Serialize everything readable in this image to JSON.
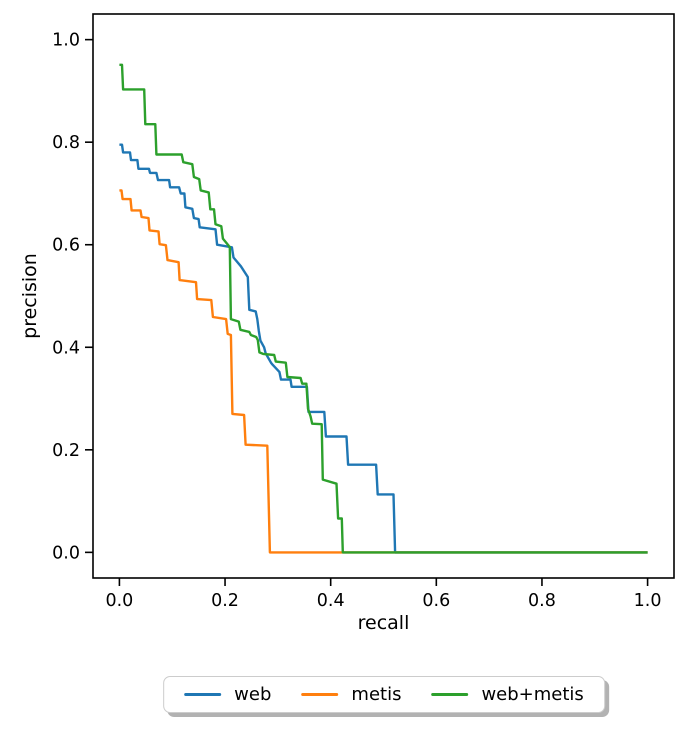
{
  "figure": {
    "background": "#ffffff",
    "axis_color": "#000000"
  },
  "chart_data": {
    "type": "line",
    "title": "",
    "xlabel": "recall",
    "ylabel": "precision",
    "xlim": [
      -0.05,
      1.05
    ],
    "ylim": [
      -0.05,
      1.05
    ],
    "grid": false,
    "legend_position": "below axes, centered, rounded box with shadow",
    "x_ticks": {
      "values": [
        0.0,
        0.2,
        0.4,
        0.6,
        0.8,
        1.0
      ],
      "labels": [
        "0.0",
        "0.2",
        "0.4",
        "0.6",
        "0.8",
        "1.0"
      ]
    },
    "y_ticks": {
      "values": [
        0.0,
        0.2,
        0.4,
        0.6,
        0.8,
        1.0
      ],
      "labels": [
        "0.0",
        "0.2",
        "0.4",
        "0.6",
        "0.8",
        "1.0"
      ]
    },
    "series": [
      {
        "name": "web",
        "color": "#1f77b4",
        "points": [
          [
            0.0,
            0.795
          ],
          [
            0.005,
            0.795
          ],
          [
            0.007,
            0.78
          ],
          [
            0.02,
            0.78
          ],
          [
            0.022,
            0.765
          ],
          [
            0.034,
            0.765
          ],
          [
            0.036,
            0.748
          ],
          [
            0.056,
            0.748
          ],
          [
            0.058,
            0.74
          ],
          [
            0.07,
            0.74
          ],
          [
            0.073,
            0.726
          ],
          [
            0.094,
            0.726
          ],
          [
            0.096,
            0.712
          ],
          [
            0.113,
            0.712
          ],
          [
            0.116,
            0.7
          ],
          [
            0.123,
            0.7
          ],
          [
            0.125,
            0.673
          ],
          [
            0.138,
            0.67
          ],
          [
            0.141,
            0.652
          ],
          [
            0.15,
            0.65
          ],
          [
            0.152,
            0.634
          ],
          [
            0.182,
            0.63
          ],
          [
            0.185,
            0.6
          ],
          [
            0.213,
            0.595
          ],
          [
            0.216,
            0.575
          ],
          [
            0.23,
            0.558
          ],
          [
            0.243,
            0.537
          ],
          [
            0.246,
            0.473
          ],
          [
            0.258,
            0.47
          ],
          [
            0.261,
            0.455
          ],
          [
            0.264,
            0.432
          ],
          [
            0.267,
            0.413
          ],
          [
            0.274,
            0.4
          ],
          [
            0.277,
            0.388
          ],
          [
            0.287,
            0.37
          ],
          [
            0.29,
            0.366
          ],
          [
            0.303,
            0.352
          ],
          [
            0.306,
            0.337
          ],
          [
            0.324,
            0.337
          ],
          [
            0.326,
            0.323
          ],
          [
            0.355,
            0.323
          ],
          [
            0.358,
            0.274
          ],
          [
            0.388,
            0.274
          ],
          [
            0.391,
            0.226
          ],
          [
            0.43,
            0.226
          ],
          [
            0.433,
            0.171
          ],
          [
            0.486,
            0.171
          ],
          [
            0.489,
            0.113
          ],
          [
            0.519,
            0.113
          ],
          [
            0.522,
            0.0
          ],
          [
            1.0,
            0.0
          ]
        ]
      },
      {
        "name": "metis",
        "color": "#ff7f0e",
        "points": [
          [
            0.0,
            0.706
          ],
          [
            0.004,
            0.706
          ],
          [
            0.006,
            0.689
          ],
          [
            0.021,
            0.689
          ],
          [
            0.023,
            0.667
          ],
          [
            0.04,
            0.667
          ],
          [
            0.042,
            0.654
          ],
          [
            0.055,
            0.652
          ],
          [
            0.057,
            0.628
          ],
          [
            0.074,
            0.626
          ],
          [
            0.076,
            0.601
          ],
          [
            0.088,
            0.599
          ],
          [
            0.091,
            0.57
          ],
          [
            0.112,
            0.566
          ],
          [
            0.114,
            0.531
          ],
          [
            0.145,
            0.527
          ],
          [
            0.147,
            0.494
          ],
          [
            0.174,
            0.492
          ],
          [
            0.177,
            0.459
          ],
          [
            0.202,
            0.455
          ],
          [
            0.205,
            0.426
          ],
          [
            0.211,
            0.424
          ],
          [
            0.214,
            0.27
          ],
          [
            0.236,
            0.268
          ],
          [
            0.239,
            0.21
          ],
          [
            0.28,
            0.208
          ],
          [
            0.285,
            0.0
          ],
          [
            1.0,
            0.0
          ]
        ]
      },
      {
        "name": "web+metis",
        "color": "#2ca02c",
        "points": [
          [
            0.0,
            0.951
          ],
          [
            0.005,
            0.951
          ],
          [
            0.007,
            0.903
          ],
          [
            0.047,
            0.903
          ],
          [
            0.049,
            0.835
          ],
          [
            0.068,
            0.835
          ],
          [
            0.07,
            0.776
          ],
          [
            0.118,
            0.776
          ],
          [
            0.121,
            0.761
          ],
          [
            0.138,
            0.757
          ],
          [
            0.141,
            0.732
          ],
          [
            0.151,
            0.728
          ],
          [
            0.154,
            0.706
          ],
          [
            0.169,
            0.702
          ],
          [
            0.172,
            0.669
          ],
          [
            0.179,
            0.669
          ],
          [
            0.182,
            0.64
          ],
          [
            0.193,
            0.636
          ],
          [
            0.196,
            0.612
          ],
          [
            0.207,
            0.598
          ],
          [
            0.209,
            0.595
          ],
          [
            0.211,
            0.455
          ],
          [
            0.226,
            0.45
          ],
          [
            0.229,
            0.434
          ],
          [
            0.246,
            0.43
          ],
          [
            0.249,
            0.424
          ],
          [
            0.259,
            0.42
          ],
          [
            0.262,
            0.414
          ],
          [
            0.265,
            0.39
          ],
          [
            0.272,
            0.387
          ],
          [
            0.293,
            0.385
          ],
          [
            0.296,
            0.372
          ],
          [
            0.315,
            0.37
          ],
          [
            0.318,
            0.342
          ],
          [
            0.343,
            0.34
          ],
          [
            0.346,
            0.329
          ],
          [
            0.354,
            0.329
          ],
          [
            0.357,
            0.28
          ],
          [
            0.362,
            0.265
          ],
          [
            0.365,
            0.251
          ],
          [
            0.383,
            0.25
          ],
          [
            0.385,
            0.142
          ],
          [
            0.411,
            0.134
          ],
          [
            0.414,
            0.066
          ],
          [
            0.421,
            0.066
          ],
          [
            0.423,
            0.0
          ],
          [
            1.0,
            0.0
          ]
        ]
      }
    ]
  }
}
